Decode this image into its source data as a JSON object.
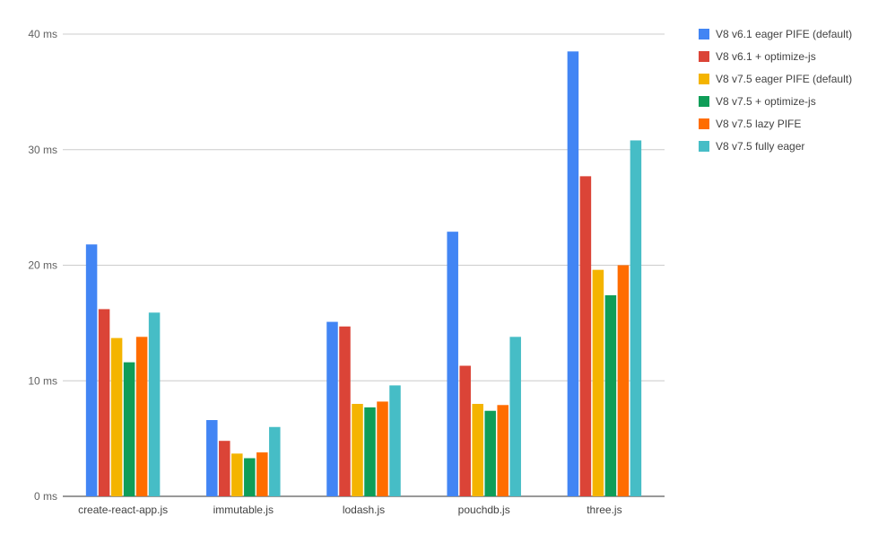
{
  "chart_data": {
    "type": "bar",
    "title": "",
    "xlabel": "",
    "ylabel": "",
    "ylim": [
      0,
      40
    ],
    "yticks": [
      0,
      10,
      20,
      30,
      40
    ],
    "ytick_labels": [
      "0 ms",
      "10 ms",
      "20 ms",
      "30 ms",
      "40 ms"
    ],
    "grid": true,
    "legend_position": "right",
    "categories": [
      "create-react-app.js",
      "immutable.js",
      "lodash.js",
      "pouchdb.js",
      "three.js"
    ],
    "series": [
      {
        "name": "V8 v6.1 eager PIFE (default)",
        "color": "#4285f4",
        "values": [
          21.8,
          6.6,
          15.1,
          22.9,
          38.5
        ]
      },
      {
        "name": "V8 v6.1 + optimize-js",
        "color": "#db4437",
        "values": [
          16.2,
          4.8,
          14.7,
          11.3,
          27.7
        ]
      },
      {
        "name": "V8 v7.5 eager PIFE (default)",
        "color": "#f4b400",
        "values": [
          13.7,
          3.7,
          8.0,
          8.0,
          19.6
        ]
      },
      {
        "name": "V8 v7.5 + optimize-js",
        "color": "#0f9d58",
        "values": [
          11.6,
          3.3,
          7.7,
          7.4,
          17.4
        ]
      },
      {
        "name": "V8 v7.5 lazy PIFE",
        "color": "#ff6d00",
        "values": [
          13.8,
          3.8,
          8.2,
          7.9,
          20.0
        ]
      },
      {
        "name": "V8 v7.5 fully eager",
        "color": "#46bdc6",
        "values": [
          15.9,
          6.0,
          9.6,
          13.8,
          30.8
        ]
      }
    ]
  }
}
